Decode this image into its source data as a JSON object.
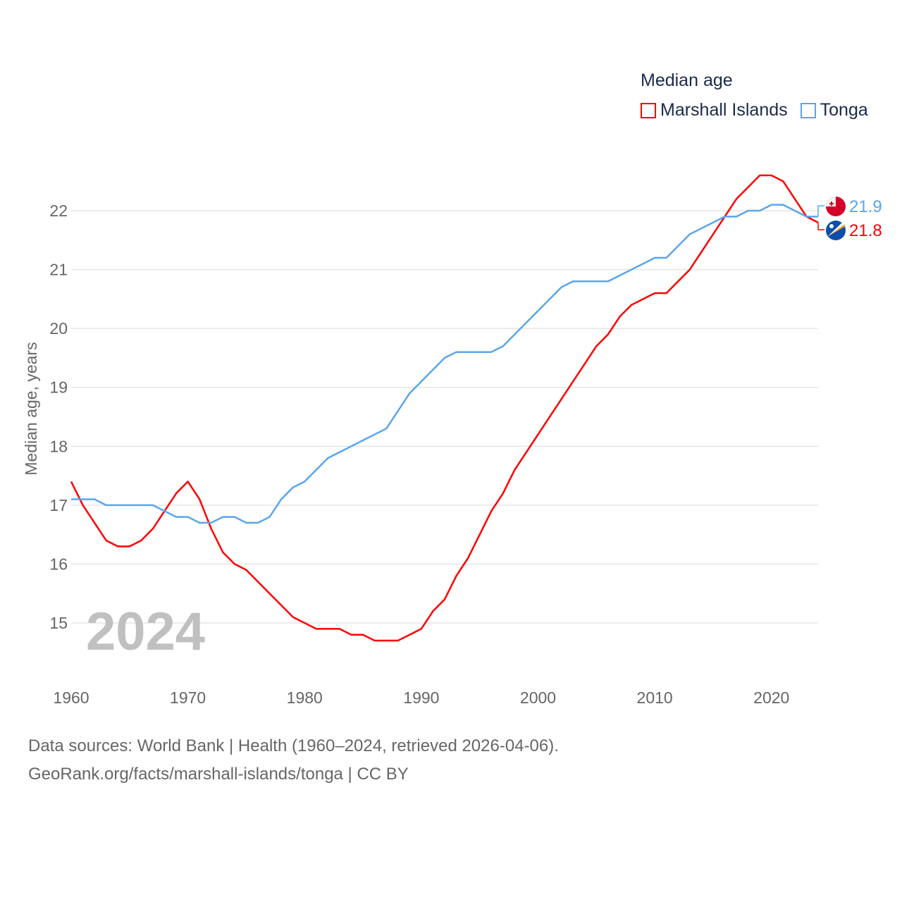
{
  "legend": {
    "title": "Median age",
    "items": [
      {
        "label": "Marshall Islands",
        "color": "#ff0000"
      },
      {
        "label": "Tonga",
        "color": "#5aa5ec"
      }
    ]
  },
  "footer": {
    "line1": "Data sources: World Bank | Health (1960–2024, retrieved 2026-04-06).",
    "line2": "GeoRank.org/facts/marshall-islands/tonga | CC BY"
  },
  "chart_data": {
    "type": "line",
    "title": "Median age",
    "ylabel": "Median age, years",
    "xlabel": "",
    "year_watermark": "2024",
    "xlim": [
      1960,
      2024
    ],
    "ylim": [
      14.0,
      23.0
    ],
    "xticks": [
      1960,
      1970,
      1980,
      1990,
      2000,
      2010,
      2020
    ],
    "yticks": [
      15,
      16,
      17,
      18,
      19,
      20,
      21,
      22
    ],
    "grid": true,
    "legend_position": "top-right",
    "x": [
      1960,
      1961,
      1962,
      1963,
      1964,
      1965,
      1966,
      1967,
      1968,
      1969,
      1970,
      1971,
      1972,
      1973,
      1974,
      1975,
      1976,
      1977,
      1978,
      1979,
      1980,
      1981,
      1982,
      1983,
      1984,
      1985,
      1986,
      1987,
      1988,
      1989,
      1990,
      1991,
      1992,
      1993,
      1994,
      1995,
      1996,
      1997,
      1998,
      1999,
      2000,
      2001,
      2002,
      2003,
      2004,
      2005,
      2006,
      2007,
      2008,
      2009,
      2010,
      2011,
      2012,
      2013,
      2014,
      2015,
      2016,
      2017,
      2018,
      2019,
      2020,
      2021,
      2022,
      2023,
      2024
    ],
    "series": [
      {
        "name": "Marshall Islands",
        "color": "#ff0000",
        "end_label": "21.8",
        "flag": "marshall-islands-flag",
        "values": [
          17.4,
          17.0,
          16.7,
          16.4,
          16.3,
          16.3,
          16.4,
          16.6,
          16.9,
          17.2,
          17.4,
          17.1,
          16.6,
          16.2,
          16.0,
          15.9,
          15.7,
          15.5,
          15.3,
          15.1,
          15.0,
          14.9,
          14.9,
          14.9,
          14.8,
          14.8,
          14.7,
          14.7,
          14.7,
          14.8,
          14.9,
          15.2,
          15.4,
          15.8,
          16.1,
          16.5,
          16.9,
          17.2,
          17.6,
          17.9,
          18.2,
          18.5,
          18.8,
          19.1,
          19.4,
          19.7,
          19.9,
          20.2,
          20.4,
          20.5,
          20.6,
          20.6,
          20.8,
          21.0,
          21.3,
          21.6,
          21.9,
          22.2,
          22.4,
          22.6,
          22.6,
          22.5,
          22.2,
          21.9,
          21.8
        ]
      },
      {
        "name": "Tonga",
        "color": "#5aa5ec",
        "end_label": "21.9",
        "flag": "tonga-flag",
        "values": [
          17.1,
          17.1,
          17.1,
          17.0,
          17.0,
          17.0,
          17.0,
          17.0,
          16.9,
          16.8,
          16.8,
          16.7,
          16.7,
          16.8,
          16.8,
          16.7,
          16.7,
          16.8,
          17.1,
          17.3,
          17.4,
          17.6,
          17.8,
          17.9,
          18.0,
          18.1,
          18.2,
          18.3,
          18.6,
          18.9,
          19.1,
          19.3,
          19.5,
          19.6,
          19.6,
          19.6,
          19.6,
          19.7,
          19.9,
          20.1,
          20.3,
          20.5,
          20.7,
          20.8,
          20.8,
          20.8,
          20.8,
          20.9,
          21.0,
          21.1,
          21.2,
          21.2,
          21.4,
          21.6,
          21.7,
          21.8,
          21.9,
          21.9,
          22.0,
          22.0,
          22.1,
          22.1,
          22.0,
          21.9,
          21.9
        ]
      }
    ]
  }
}
